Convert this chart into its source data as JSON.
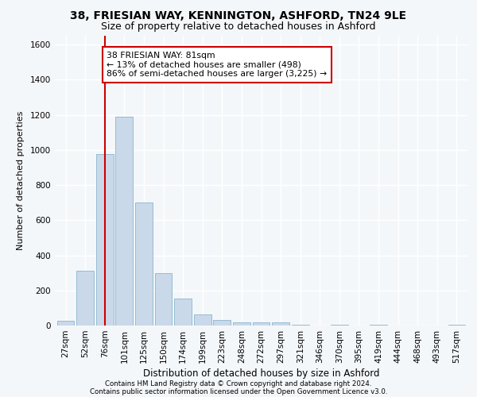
{
  "title1": "38, FRIESIAN WAY, KENNINGTON, ASHFORD, TN24 9LE",
  "title2": "Size of property relative to detached houses in Ashford",
  "xlabel": "Distribution of detached houses by size in Ashford",
  "ylabel": "Number of detached properties",
  "categories": [
    "27sqm",
    "52sqm",
    "76sqm",
    "101sqm",
    "125sqm",
    "150sqm",
    "174sqm",
    "199sqm",
    "223sqm",
    "248sqm",
    "272sqm",
    "297sqm",
    "321sqm",
    "346sqm",
    "370sqm",
    "395sqm",
    "419sqm",
    "444sqm",
    "468sqm",
    "493sqm",
    "517sqm"
  ],
  "values": [
    25,
    310,
    975,
    1190,
    700,
    300,
    155,
    65,
    30,
    20,
    20,
    20,
    5,
    0,
    5,
    0,
    5,
    0,
    0,
    0,
    5
  ],
  "bar_color": "#c9d9ea",
  "bar_edge_color": "#8ab4cc",
  "vline_color": "#cc0000",
  "vline_bin_index": 2,
  "annotation_text": "38 FRIESIAN WAY: 81sqm\n← 13% of detached houses are smaller (498)\n86% of semi-detached houses are larger (3,225) →",
  "annotation_box_color": "#ffffff",
  "annotation_box_edge_color": "#cc0000",
  "ylim": [
    0,
    1650
  ],
  "yticks": [
    0,
    200,
    400,
    600,
    800,
    1000,
    1200,
    1400,
    1600
  ],
  "footnote1": "Contains HM Land Registry data © Crown copyright and database right 2024.",
  "footnote2": "Contains public sector information licensed under the Open Government Licence v3.0.",
  "bg_color": "#f4f7fa",
  "plot_bg_color": "#f4f7fa",
  "grid_color": "#ffffff",
  "title1_fontsize": 10,
  "title2_fontsize": 9,
  "xlabel_fontsize": 8.5,
  "ylabel_fontsize": 8,
  "tick_fontsize": 7.5,
  "footnote_fontsize": 6.2,
  "annotation_fontsize": 7.8
}
